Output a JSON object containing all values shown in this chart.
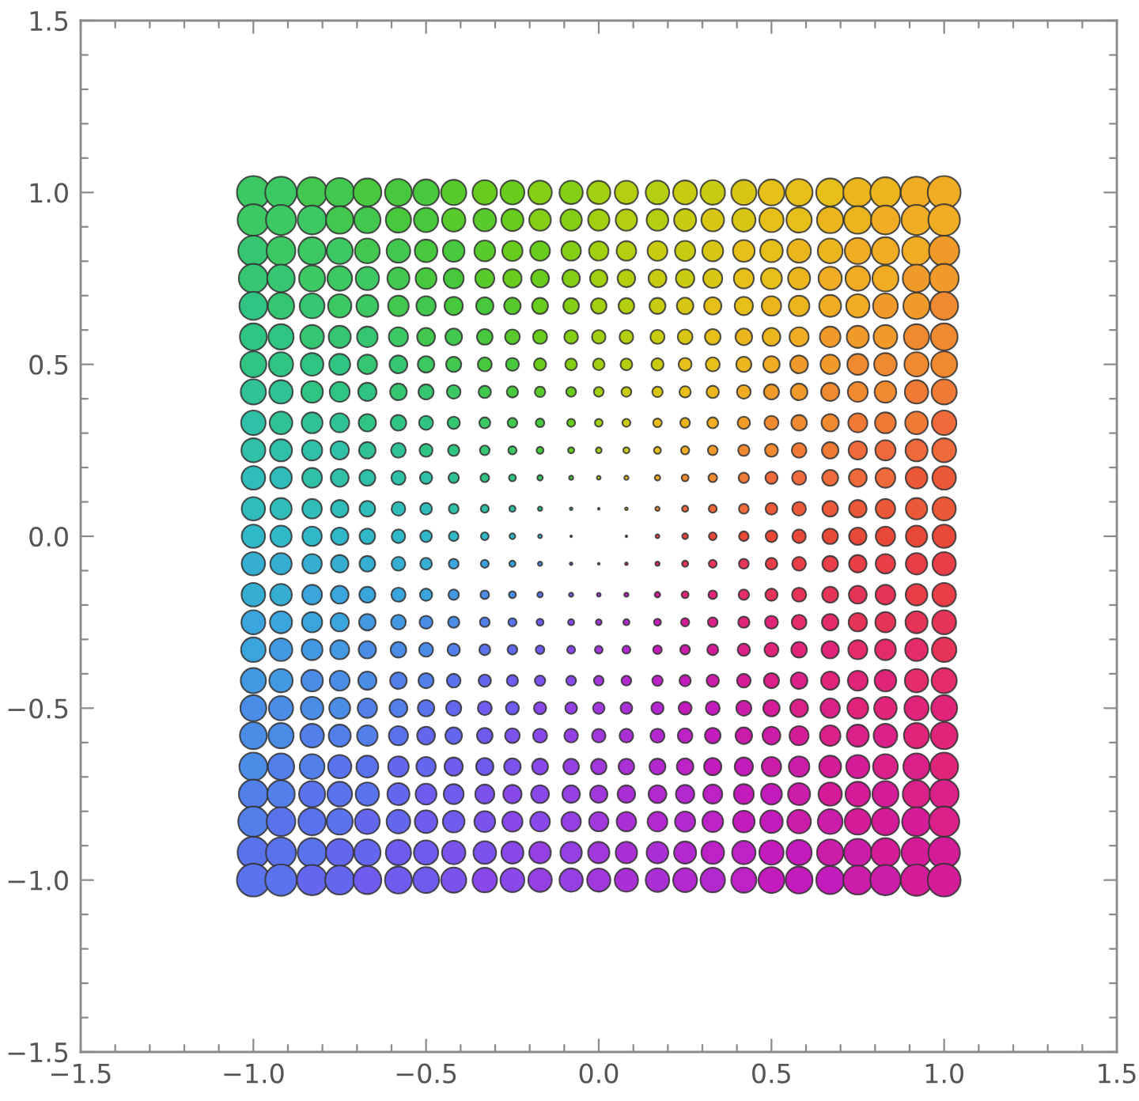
{
  "chart_data": {
    "type": "bubble",
    "marker": "circle",
    "xlim": [
      -1.5,
      1.5
    ],
    "ylim": [
      -1.5,
      1.5
    ],
    "xticks": [
      {
        "value": -1.5,
        "label": "−1.5"
      },
      {
        "value": -1.0,
        "label": "−1.0"
      },
      {
        "value": -0.5,
        "label": "−0.5"
      },
      {
        "value": 0.0,
        "label": "0.0"
      },
      {
        "value": 0.5,
        "label": "0.5"
      },
      {
        "value": 1.0,
        "label": "1.0"
      },
      {
        "value": 1.5,
        "label": "1.5"
      }
    ],
    "yticks": [
      {
        "value": -1.5,
        "label": "−1.5"
      },
      {
        "value": -1.0,
        "label": "−1.0"
      },
      {
        "value": -0.5,
        "label": "−0.5"
      },
      {
        "value": 0.0,
        "label": "0.0"
      },
      {
        "value": 0.5,
        "label": "0.5"
      },
      {
        "value": 1.0,
        "label": "1.0"
      },
      {
        "value": 1.5,
        "label": "1.5"
      }
    ],
    "x": [
      -1,
      -0.92,
      -0.83,
      -0.75,
      -0.67,
      -0.58,
      -0.5,
      -0.42,
      -0.33,
      -0.25,
      -0.17,
      -0.08,
      0,
      0.08,
      0.17,
      0.25,
      0.33,
      0.42,
      0.5,
      0.58,
      0.67,
      0.75,
      0.83,
      0.92,
      1
    ],
    "series": [
      {
        "values": [
          1,
          1,
          1,
          1,
          1,
          1,
          1,
          1,
          1,
          1,
          1,
          1,
          1,
          1,
          1,
          1,
          1,
          1,
          1,
          1,
          1,
          1,
          1,
          1,
          1
        ],
        "sizes": [
          1,
          0.92,
          0.847,
          0.781,
          0.722,
          0.67,
          0.625,
          0.587,
          0.556,
          0.531,
          0.514,
          0.503,
          0.5,
          0.503,
          0.514,
          0.531,
          0.556,
          0.587,
          0.625,
          0.67,
          0.722,
          0.781,
          0.847,
          0.92,
          1
        ],
        "colors": [
          "#3cc862",
          "#3cc862",
          "#42c84f",
          "#42c84f",
          "#48c83c",
          "#48c83c",
          "#48c83c",
          "#58ca2c",
          "#68cc1c",
          "#68cc1c",
          "#84ce16",
          "#84ce16",
          "#a0d010",
          "#b4ce10",
          "#b4ce10",
          "#c8cc10",
          "#c8cc10",
          "#d7c614",
          "#e6c018",
          "#e6c018",
          "#e6c018",
          "#ebb61d",
          "#ebb61d",
          "#f0ac22",
          "#f0ac22"
        ]
      },
      {
        "values": [
          0.92,
          0.92,
          0.92,
          0.92,
          0.92,
          0.92,
          0.92,
          0.92,
          0.92,
          0.92,
          0.92,
          0.92,
          0.92,
          0.92,
          0.92,
          0.92,
          0.92,
          0.92,
          0.92,
          0.92,
          0.92,
          0.92,
          0.92,
          0.92,
          0.92
        ],
        "sizes": [
          0.92,
          0.84,
          0.767,
          0.701,
          0.642,
          0.59,
          0.545,
          0.507,
          0.476,
          0.451,
          0.434,
          0.424,
          0.42,
          0.424,
          0.434,
          0.451,
          0.476,
          0.507,
          0.545,
          0.59,
          0.642,
          0.701,
          0.767,
          0.84,
          0.92
        ],
        "colors": [
          "#3cc862",
          "#3cc862",
          "#3cc862",
          "#42c84f",
          "#42c84f",
          "#48c83c",
          "#48c83c",
          "#58ca2c",
          "#58ca2c",
          "#68cc1c",
          "#84ce16",
          "#84ce16",
          "#a0d010",
          "#b4ce10",
          "#b4ce10",
          "#c8cc10",
          "#d7c614",
          "#d7c614",
          "#e6c018",
          "#e6c018",
          "#ebb61d",
          "#ebb61d",
          "#f0ac22",
          "#f0ac22",
          "#f0ac22"
        ]
      },
      {
        "values": [
          0.83,
          0.83,
          0.83,
          0.83,
          0.83,
          0.83,
          0.83,
          0.83,
          0.83,
          0.83,
          0.83,
          0.83,
          0.83,
          0.83,
          0.83,
          0.83,
          0.83,
          0.83,
          0.83,
          0.83,
          0.83,
          0.83,
          0.83,
          0.83,
          0.83
        ],
        "sizes": [
          0.847,
          0.767,
          0.694,
          0.628,
          0.569,
          0.517,
          0.472,
          0.434,
          0.403,
          0.378,
          0.361,
          0.351,
          0.347,
          0.351,
          0.361,
          0.378,
          0.403,
          0.434,
          0.472,
          0.517,
          0.569,
          0.628,
          0.694,
          0.767,
          0.847
        ],
        "colors": [
          "#36c672",
          "#3cc862",
          "#3cc862",
          "#3cc862",
          "#42c84f",
          "#42c84f",
          "#48c83c",
          "#48c83c",
          "#58ca2c",
          "#68cc1c",
          "#68cc1c",
          "#84ce16",
          "#a0d010",
          "#b4ce10",
          "#c8cc10",
          "#c8cc10",
          "#d7c614",
          "#e6c018",
          "#e6c018",
          "#ebb61d",
          "#ebb61d",
          "#f0ac22",
          "#f0ac22",
          "#f0ac22",
          "#f09b29"
        ]
      },
      {
        "values": [
          0.75,
          0.75,
          0.75,
          0.75,
          0.75,
          0.75,
          0.75,
          0.75,
          0.75,
          0.75,
          0.75,
          0.75,
          0.75,
          0.75,
          0.75,
          0.75,
          0.75,
          0.75,
          0.75,
          0.75,
          0.75,
          0.75,
          0.75,
          0.75,
          0.75
        ],
        "sizes": [
          0.781,
          0.701,
          0.628,
          0.563,
          0.503,
          0.451,
          0.406,
          0.368,
          0.337,
          0.313,
          0.295,
          0.285,
          0.281,
          0.285,
          0.295,
          0.313,
          0.337,
          0.368,
          0.406,
          0.451,
          0.503,
          0.563,
          0.628,
          0.701,
          0.781
        ],
        "colors": [
          "#36c672",
          "#36c672",
          "#3cc862",
          "#3cc862",
          "#3cc862",
          "#42c84f",
          "#48c83c",
          "#48c83c",
          "#58ca2c",
          "#68cc1c",
          "#68cc1c",
          "#84ce16",
          "#a0d010",
          "#b4ce10",
          "#c8cc10",
          "#c8cc10",
          "#d7c614",
          "#e6c018",
          "#e6c018",
          "#ebb61d",
          "#f0ac22",
          "#f0ac22",
          "#f0ac22",
          "#f09b29",
          "#f09b29"
        ]
      },
      {
        "values": [
          0.67,
          0.67,
          0.67,
          0.67,
          0.67,
          0.67,
          0.67,
          0.67,
          0.67,
          0.67,
          0.67,
          0.67,
          0.67,
          0.67,
          0.67,
          0.67,
          0.67,
          0.67,
          0.67,
          0.67,
          0.67,
          0.67,
          0.67,
          0.67,
          0.67
        ],
        "sizes": [
          0.722,
          0.642,
          0.569,
          0.503,
          0.444,
          0.392,
          0.347,
          0.309,
          0.278,
          0.253,
          0.236,
          0.226,
          0.222,
          0.226,
          0.236,
          0.253,
          0.278,
          0.309,
          0.347,
          0.392,
          0.444,
          0.503,
          0.569,
          0.642,
          0.722
        ],
        "colors": [
          "#30c482",
          "#36c672",
          "#36c672",
          "#3cc862",
          "#3cc862",
          "#42c84f",
          "#42c84f",
          "#48c83c",
          "#48c83c",
          "#58ca2c",
          "#68cc1c",
          "#84ce16",
          "#a0d010",
          "#b4ce10",
          "#c8cc10",
          "#d7c614",
          "#e6c018",
          "#e6c018",
          "#ebb61d",
          "#ebb61d",
          "#f0ac22",
          "#f0ac22",
          "#f09b29",
          "#f09b29",
          "#f08a30"
        ]
      },
      {
        "values": [
          0.58,
          0.58,
          0.58,
          0.58,
          0.58,
          0.58,
          0.58,
          0.58,
          0.58,
          0.58,
          0.58,
          0.58,
          0.58,
          0.58,
          0.58,
          0.58,
          0.58,
          0.58,
          0.58,
          0.58,
          0.58,
          0.58,
          0.58,
          0.58,
          0.58
        ],
        "sizes": [
          0.67,
          0.59,
          0.517,
          0.451,
          0.392,
          0.34,
          0.295,
          0.257,
          0.226,
          0.201,
          0.184,
          0.174,
          0.17,
          0.174,
          0.184,
          0.201,
          0.226,
          0.257,
          0.295,
          0.34,
          0.392,
          0.451,
          0.517,
          0.59,
          0.67
        ],
        "colors": [
          "#30c482",
          "#30c482",
          "#36c672",
          "#36c672",
          "#36c672",
          "#3cc862",
          "#42c84f",
          "#42c84f",
          "#48c83c",
          "#58ca2c",
          "#68cc1c",
          "#84ce16",
          "#a0d010",
          "#b4ce10",
          "#c8cc10",
          "#d7c614",
          "#e6c018",
          "#ebb61d",
          "#ebb61d",
          "#f0ac22",
          "#f09b29",
          "#f09b29",
          "#f09b29",
          "#f08a30",
          "#f08a30"
        ]
      },
      {
        "values": [
          0.5,
          0.5,
          0.5,
          0.5,
          0.5,
          0.5,
          0.5,
          0.5,
          0.5,
          0.5,
          0.5,
          0.5,
          0.5,
          0.5,
          0.5,
          0.5,
          0.5,
          0.5,
          0.5,
          0.5,
          0.5,
          0.5,
          0.5,
          0.5,
          0.5
        ],
        "sizes": [
          0.625,
          0.545,
          0.472,
          0.406,
          0.347,
          0.295,
          0.25,
          0.212,
          0.181,
          0.156,
          0.139,
          0.128,
          0.125,
          0.128,
          0.139,
          0.156,
          0.181,
          0.212,
          0.25,
          0.295,
          0.347,
          0.406,
          0.472,
          0.545,
          0.625
        ],
        "colors": [
          "#30c482",
          "#30c482",
          "#30c482",
          "#30c482",
          "#36c672",
          "#36c672",
          "#3cc862",
          "#42c84f",
          "#48c83c",
          "#48c83c",
          "#68cc1c",
          "#84ce16",
          "#a0d010",
          "#b4ce10",
          "#c8cc10",
          "#e6c018",
          "#e6c018",
          "#ebb61d",
          "#f0ac22",
          "#f09b29",
          "#f09b29",
          "#f08a30",
          "#f08a30",
          "#f08a30",
          "#f08a30"
        ]
      },
      {
        "values": [
          0.42,
          0.42,
          0.42,
          0.42,
          0.42,
          0.42,
          0.42,
          0.42,
          0.42,
          0.42,
          0.42,
          0.42,
          0.42,
          0.42,
          0.42,
          0.42,
          0.42,
          0.42,
          0.42,
          0.42,
          0.42,
          0.42,
          0.42,
          0.42,
          0.42
        ],
        "sizes": [
          0.587,
          0.507,
          0.434,
          0.368,
          0.309,
          0.257,
          0.212,
          0.174,
          0.142,
          0.118,
          0.101,
          0.09,
          0.087,
          0.09,
          0.101,
          0.118,
          0.142,
          0.174,
          0.212,
          0.257,
          0.309,
          0.368,
          0.434,
          0.507,
          0.587
        ],
        "colors": [
          "#30c295",
          "#30c295",
          "#30c482",
          "#30c482",
          "#30c482",
          "#36c672",
          "#36c672",
          "#3cc862",
          "#42c84f",
          "#48c83c",
          "#58ca2c",
          "#68cc1c",
          "#a0d010",
          "#c8cc10",
          "#d7c614",
          "#e6c018",
          "#ebb61d",
          "#f0ac22",
          "#f09b29",
          "#f09b29",
          "#f08a30",
          "#f08a30",
          "#f08a30",
          "#ef7a35",
          "#ef7a35"
        ]
      },
      {
        "values": [
          0.33,
          0.33,
          0.33,
          0.33,
          0.33,
          0.33,
          0.33,
          0.33,
          0.33,
          0.33,
          0.33,
          0.33,
          0.33,
          0.33,
          0.33,
          0.33,
          0.33,
          0.33,
          0.33,
          0.33,
          0.33,
          0.33,
          0.33,
          0.33,
          0.33
        ],
        "sizes": [
          0.556,
          0.476,
          0.403,
          0.337,
          0.278,
          0.226,
          0.181,
          0.142,
          0.111,
          0.087,
          0.069,
          0.059,
          0.056,
          0.059,
          0.069,
          0.087,
          0.111,
          0.142,
          0.181,
          0.226,
          0.278,
          0.337,
          0.403,
          0.476,
          0.556
        ],
        "colors": [
          "#30c0a8",
          "#30c295",
          "#30c295",
          "#30c295",
          "#30c482",
          "#30c482",
          "#30c482",
          "#36c672",
          "#3cc862",
          "#42c84f",
          "#48c83c",
          "#68cc1c",
          "#a0d010",
          "#c8cc10",
          "#e6c018",
          "#ebb61d",
          "#f0ac22",
          "#f09b29",
          "#f08a30",
          "#f08a30",
          "#f08a30",
          "#ef7a35",
          "#ef7a35",
          "#ef7a35",
          "#ee6a3a"
        ]
      },
      {
        "values": [
          0.25,
          0.25,
          0.25,
          0.25,
          0.25,
          0.25,
          0.25,
          0.25,
          0.25,
          0.25,
          0.25,
          0.25,
          0.25,
          0.25,
          0.25,
          0.25,
          0.25,
          0.25,
          0.25,
          0.25,
          0.25,
          0.25,
          0.25,
          0.25,
          0.25
        ],
        "sizes": [
          0.531,
          0.451,
          0.378,
          0.313,
          0.253,
          0.201,
          0.156,
          0.118,
          0.087,
          0.063,
          0.045,
          0.035,
          0.031,
          0.035,
          0.045,
          0.063,
          0.087,
          0.118,
          0.156,
          0.201,
          0.253,
          0.313,
          0.378,
          0.451,
          0.531
        ],
        "colors": [
          "#30c0a8",
          "#30c0a8",
          "#30c0a8",
          "#30c0a8",
          "#30c295",
          "#30c295",
          "#30c482",
          "#30c482",
          "#36c672",
          "#3cc862",
          "#48c83c",
          "#68cc1c",
          "#a0d010",
          "#c8cc10",
          "#e6c018",
          "#f0ac22",
          "#f09b29",
          "#f08a30",
          "#f08a30",
          "#ef7a35",
          "#ef7a35",
          "#ee6a3a",
          "#ee6a3a",
          "#ee6a3a",
          "#ee6a3a"
        ]
      },
      {
        "values": [
          0.17,
          0.17,
          0.17,
          0.17,
          0.17,
          0.17,
          0.17,
          0.17,
          0.17,
          0.17,
          0.17,
          0.17,
          0.17,
          0.17,
          0.17,
          0.17,
          0.17,
          0.17,
          0.17,
          0.17,
          0.17,
          0.17,
          0.17,
          0.17,
          0.17
        ],
        "sizes": [
          0.514,
          0.434,
          0.361,
          0.295,
          0.236,
          0.184,
          0.139,
          0.101,
          0.069,
          0.045,
          0.028,
          0.017,
          0.014,
          0.017,
          0.028,
          0.045,
          0.069,
          0.101,
          0.139,
          0.184,
          0.236,
          0.295,
          0.361,
          0.434,
          0.514
        ],
        "colors": [
          "#30bcb8",
          "#30bcb8",
          "#30c0a8",
          "#30c0a8",
          "#30c0a8",
          "#30c0a8",
          "#30c0a8",
          "#30c295",
          "#30c482",
          "#30c482",
          "#3cc862",
          "#48c83c",
          "#a0d010",
          "#e6c018",
          "#f0ac22",
          "#f08a30",
          "#f08a30",
          "#ef7a35",
          "#ee6a3a",
          "#ee6a3a",
          "#ee6a3a",
          "#ee6a3a",
          "#ee6a3a",
          "#eb5939",
          "#eb5939"
        ]
      },
      {
        "values": [
          0.08,
          0.08,
          0.08,
          0.08,
          0.08,
          0.08,
          0.08,
          0.08,
          0.08,
          0.08,
          0.08,
          0.08,
          0.08,
          0.08,
          0.08,
          0.08,
          0.08,
          0.08,
          0.08,
          0.08,
          0.08,
          0.08,
          0.08,
          0.08,
          0.08
        ],
        "sizes": [
          0.503,
          0.424,
          0.351,
          0.285,
          0.226,
          0.174,
          0.128,
          0.09,
          0.059,
          0.035,
          0.017,
          0.007,
          0.003,
          0.007,
          0.017,
          0.035,
          0.059,
          0.09,
          0.128,
          0.174,
          0.226,
          0.285,
          0.351,
          0.424,
          0.503
        ],
        "colors": [
          "#30bcb8",
          "#30bcb8",
          "#30bcb8",
          "#30bcb8",
          "#30bcb8",
          "#30bcb8",
          "#30bcb8",
          "#30c0a8",
          "#30c0a8",
          "#30c0a8",
          "#30c482",
          "#3cc862",
          "#a0d010",
          "#f0ac22",
          "#f08a30",
          "#ee6a3a",
          "#ee6a3a",
          "#ee6a3a",
          "#eb5939",
          "#eb5939",
          "#eb5939",
          "#eb5939",
          "#eb5939",
          "#eb5939",
          "#eb5939"
        ]
      },
      {
        "values": [
          0,
          0,
          0,
          0,
          0,
          0,
          0,
          0,
          0,
          0,
          0,
          0,
          null,
          0,
          0,
          0,
          0,
          0,
          0,
          0,
          0,
          0,
          0,
          0,
          0
        ],
        "sizes": [
          0.5,
          0.42,
          0.347,
          0.281,
          0.222,
          0.17,
          0.125,
          0.087,
          0.056,
          0.031,
          0.014,
          0.003,
          null,
          0.003,
          0.014,
          0.031,
          0.056,
          0.087,
          0.125,
          0.17,
          0.222,
          0.281,
          0.347,
          0.42,
          0.5
        ],
        "colors": [
          "#30b8c8",
          "#30b8c8",
          "#30b8c8",
          "#30b8c8",
          "#30b8c8",
          "#30b8c8",
          "#30b8c8",
          "#30b8c8",
          "#30b8c8",
          "#30b8c8",
          "#30b8c8",
          "#30b8c8",
          null,
          "#e84838",
          "#e84838",
          "#e84838",
          "#e84838",
          "#e84838",
          "#e84838",
          "#e84838",
          "#e84838",
          "#e84838",
          "#e84838",
          "#e84838",
          "#e84838"
        ]
      },
      {
        "values": [
          -0.08,
          -0.08,
          -0.08,
          -0.08,
          -0.08,
          -0.08,
          -0.08,
          -0.08,
          -0.08,
          -0.08,
          -0.08,
          -0.08,
          -0.08,
          -0.08,
          -0.08,
          -0.08,
          -0.08,
          -0.08,
          -0.08,
          -0.08,
          -0.08,
          -0.08,
          -0.08,
          -0.08,
          -0.08
        ],
        "sizes": [
          0.503,
          0.424,
          0.351,
          0.285,
          0.226,
          0.174,
          0.128,
          0.09,
          0.059,
          0.035,
          0.017,
          0.007,
          0.003,
          0.007,
          0.017,
          0.035,
          0.059,
          0.09,
          0.128,
          0.174,
          0.226,
          0.285,
          0.351,
          0.424,
          0.503
        ],
        "colors": [
          "#35aed2",
          "#35aed2",
          "#35aed2",
          "#35aed2",
          "#35aed2",
          "#35aed2",
          "#35aed2",
          "#3aa4dc",
          "#3aa4dc",
          "#3aa4dc",
          "#4a8ce6",
          "#5a72ec",
          "#a038dc",
          "#d41c98",
          "#e0247a",
          "#e63458",
          "#e63458",
          "#e63458",
          "#e73e48",
          "#e73e48",
          "#e73e48",
          "#e73e48",
          "#e73e48",
          "#e73e48",
          "#e73e48"
        ]
      },
      {
        "values": [
          -0.17,
          -0.17,
          -0.17,
          -0.17,
          -0.17,
          -0.17,
          -0.17,
          -0.17,
          -0.17,
          -0.17,
          -0.17,
          -0.17,
          -0.17,
          -0.17,
          -0.17,
          -0.17,
          -0.17,
          -0.17,
          -0.17,
          -0.17,
          -0.17,
          -0.17,
          -0.17,
          -0.17,
          -0.17
        ],
        "sizes": [
          0.514,
          0.434,
          0.361,
          0.295,
          0.236,
          0.184,
          0.139,
          0.101,
          0.069,
          0.045,
          0.028,
          0.017,
          0.014,
          0.017,
          0.028,
          0.045,
          0.069,
          0.101,
          0.139,
          0.184,
          0.236,
          0.295,
          0.361,
          0.434,
          0.514
        ],
        "colors": [
          "#35aed2",
          "#35aed2",
          "#3aa4dc",
          "#3aa4dc",
          "#3aa4dc",
          "#3aa4dc",
          "#3aa4dc",
          "#4298e1",
          "#4a8ce6",
          "#4a8ce6",
          "#5a72ec",
          "#6e5cee",
          "#a038dc",
          "#c41cbc",
          "#d41c98",
          "#e0247a",
          "#e0247a",
          "#e32c69",
          "#e63458",
          "#e63458",
          "#e63458",
          "#e63458",
          "#e63458",
          "#e73e48",
          "#e73e48"
        ]
      },
      {
        "values": [
          -0.25,
          -0.25,
          -0.25,
          -0.25,
          -0.25,
          -0.25,
          -0.25,
          -0.25,
          -0.25,
          -0.25,
          -0.25,
          -0.25,
          -0.25,
          -0.25,
          -0.25,
          -0.25,
          -0.25,
          -0.25,
          -0.25,
          -0.25,
          -0.25,
          -0.25,
          -0.25,
          -0.25,
          -0.25
        ],
        "sizes": [
          0.531,
          0.451,
          0.378,
          0.313,
          0.253,
          0.201,
          0.156,
          0.118,
          0.087,
          0.063,
          0.045,
          0.035,
          0.031,
          0.035,
          0.045,
          0.063,
          0.087,
          0.118,
          0.156,
          0.201,
          0.253,
          0.313,
          0.378,
          0.451,
          0.531
        ],
        "colors": [
          "#3aa4dc",
          "#3aa4dc",
          "#3aa4dc",
          "#3aa4dc",
          "#4298e1",
          "#4298e1",
          "#4a8ce6",
          "#4a8ce6",
          "#527fe9",
          "#5a72ec",
          "#6e5cee",
          "#8848ea",
          "#a038dc",
          "#b428d0",
          "#c41cbc",
          "#d41c98",
          "#da2089",
          "#e0247a",
          "#e0247a",
          "#e32c69",
          "#e32c69",
          "#e63458",
          "#e63458",
          "#e63458",
          "#e63458"
        ]
      },
      {
        "values": [
          -0.33,
          -0.33,
          -0.33,
          -0.33,
          -0.33,
          -0.33,
          -0.33,
          -0.33,
          -0.33,
          -0.33,
          -0.33,
          -0.33,
          -0.33,
          -0.33,
          -0.33,
          -0.33,
          -0.33,
          -0.33,
          -0.33,
          -0.33,
          -0.33,
          -0.33,
          -0.33,
          -0.33,
          -0.33
        ],
        "sizes": [
          0.556,
          0.476,
          0.403,
          0.337,
          0.278,
          0.226,
          0.181,
          0.142,
          0.111,
          0.087,
          0.069,
          0.059,
          0.056,
          0.059,
          0.069,
          0.087,
          0.111,
          0.142,
          0.181,
          0.226,
          0.278,
          0.337,
          0.403,
          0.476,
          0.556
        ],
        "colors": [
          "#3aa4dc",
          "#4298e1",
          "#4298e1",
          "#4298e1",
          "#4a8ce6",
          "#4a8ce6",
          "#4a8ce6",
          "#527fe9",
          "#5a72ec",
          "#6467ed",
          "#6e5cee",
          "#8848ea",
          "#a038dc",
          "#b428d0",
          "#c41cbc",
          "#cc1caa",
          "#d41c98",
          "#da2089",
          "#e0247a",
          "#e0247a",
          "#e0247a",
          "#e32c69",
          "#e32c69",
          "#e32c69",
          "#e63458"
        ]
      },
      {
        "values": [
          -0.42,
          -0.42,
          -0.42,
          -0.42,
          -0.42,
          -0.42,
          -0.42,
          -0.42,
          -0.42,
          -0.42,
          -0.42,
          -0.42,
          -0.42,
          -0.42,
          -0.42,
          -0.42,
          -0.42,
          -0.42,
          -0.42,
          -0.42,
          -0.42,
          -0.42,
          -0.42,
          -0.42,
          -0.42
        ],
        "sizes": [
          0.587,
          0.507,
          0.434,
          0.368,
          0.309,
          0.257,
          0.212,
          0.174,
          0.142,
          0.118,
          0.101,
          0.09,
          0.087,
          0.09,
          0.101,
          0.118,
          0.142,
          0.174,
          0.212,
          0.257,
          0.309,
          0.368,
          0.434,
          0.507,
          0.587
        ],
        "colors": [
          "#4298e1",
          "#4298e1",
          "#4a8ce6",
          "#4a8ce6",
          "#4a8ce6",
          "#527fe9",
          "#527fe9",
          "#5a72ec",
          "#6467ed",
          "#6e5cee",
          "#7b52ec",
          "#8848ea",
          "#a038dc",
          "#b428d0",
          "#bc22c6",
          "#c41cbc",
          "#cc1caa",
          "#d41c98",
          "#da2089",
          "#da2089",
          "#e0247a",
          "#e0247a",
          "#e0247a",
          "#e32c69",
          "#e32c69"
        ]
      },
      {
        "values": [
          -0.5,
          -0.5,
          -0.5,
          -0.5,
          -0.5,
          -0.5,
          -0.5,
          -0.5,
          -0.5,
          -0.5,
          -0.5,
          -0.5,
          -0.5,
          -0.5,
          -0.5,
          -0.5,
          -0.5,
          -0.5,
          -0.5,
          -0.5,
          -0.5,
          -0.5,
          -0.5,
          -0.5,
          -0.5
        ],
        "sizes": [
          0.625,
          0.545,
          0.472,
          0.406,
          0.347,
          0.295,
          0.25,
          0.212,
          0.181,
          0.156,
          0.139,
          0.128,
          0.125,
          0.128,
          0.139,
          0.156,
          0.181,
          0.212,
          0.25,
          0.295,
          0.347,
          0.406,
          0.472,
          0.545,
          0.625
        ],
        "colors": [
          "#4a8ce6",
          "#4a8ce6",
          "#4a8ce6",
          "#4a8ce6",
          "#527fe9",
          "#527fe9",
          "#5a72ec",
          "#6467ed",
          "#6e5cee",
          "#6e5cee",
          "#8848ea",
          "#9440e3",
          "#a038dc",
          "#aa30d6",
          "#b428d0",
          "#c41cbc",
          "#c41cbc",
          "#cc1caa",
          "#d41c98",
          "#da2089",
          "#da2089",
          "#e0247a",
          "#e0247a",
          "#e0247a",
          "#e0247a"
        ]
      },
      {
        "values": [
          -0.58,
          -0.58,
          -0.58,
          -0.58,
          -0.58,
          -0.58,
          -0.58,
          -0.58,
          -0.58,
          -0.58,
          -0.58,
          -0.58,
          -0.58,
          -0.58,
          -0.58,
          -0.58,
          -0.58,
          -0.58,
          -0.58,
          -0.58,
          -0.58,
          -0.58,
          -0.58,
          -0.58,
          -0.58
        ],
        "sizes": [
          0.67,
          0.59,
          0.517,
          0.451,
          0.392,
          0.34,
          0.295,
          0.257,
          0.226,
          0.201,
          0.184,
          0.174,
          0.17,
          0.174,
          0.184,
          0.201,
          0.226,
          0.257,
          0.295,
          0.34,
          0.392,
          0.451,
          0.517,
          0.59,
          0.67
        ],
        "colors": [
          "#4a8ce6",
          "#4a8ce6",
          "#527fe9",
          "#527fe9",
          "#527fe9",
          "#5a72ec",
          "#6467ed",
          "#6467ed",
          "#6e5cee",
          "#7b52ec",
          "#8848ea",
          "#9440e3",
          "#a038dc",
          "#aa30d6",
          "#b428d0",
          "#bc22c6",
          "#c41cbc",
          "#cc1caa",
          "#cc1caa",
          "#d41c98",
          "#da2089",
          "#da2089",
          "#da2089",
          "#e0247a",
          "#e0247a"
        ]
      },
      {
        "values": [
          -0.67,
          -0.67,
          -0.67,
          -0.67,
          -0.67,
          -0.67,
          -0.67,
          -0.67,
          -0.67,
          -0.67,
          -0.67,
          -0.67,
          -0.67,
          -0.67,
          -0.67,
          -0.67,
          -0.67,
          -0.67,
          -0.67,
          -0.67,
          -0.67,
          -0.67,
          -0.67,
          -0.67,
          -0.67
        ],
        "sizes": [
          0.722,
          0.642,
          0.569,
          0.503,
          0.444,
          0.392,
          0.347,
          0.309,
          0.278,
          0.253,
          0.236,
          0.226,
          0.222,
          0.226,
          0.236,
          0.253,
          0.278,
          0.309,
          0.347,
          0.392,
          0.444,
          0.503,
          0.569,
          0.642,
          0.722
        ],
        "colors": [
          "#4a8ce6",
          "#527fe9",
          "#527fe9",
          "#5a72ec",
          "#5a72ec",
          "#6467ed",
          "#6467ed",
          "#6e5cee",
          "#6e5cee",
          "#7b52ec",
          "#8848ea",
          "#9440e3",
          "#a038dc",
          "#aa30d6",
          "#b428d0",
          "#bc22c6",
          "#c41cbc",
          "#c41cbc",
          "#cc1caa",
          "#cc1caa",
          "#d41c98",
          "#d41c98",
          "#da2089",
          "#da2089",
          "#e0247a"
        ]
      },
      {
        "values": [
          -0.75,
          -0.75,
          -0.75,
          -0.75,
          -0.75,
          -0.75,
          -0.75,
          -0.75,
          -0.75,
          -0.75,
          -0.75,
          -0.75,
          -0.75,
          -0.75,
          -0.75,
          -0.75,
          -0.75,
          -0.75,
          -0.75,
          -0.75,
          -0.75,
          -0.75,
          -0.75,
          -0.75,
          -0.75
        ],
        "sizes": [
          0.781,
          0.701,
          0.628,
          0.563,
          0.503,
          0.451,
          0.406,
          0.368,
          0.337,
          0.313,
          0.295,
          0.285,
          0.281,
          0.285,
          0.295,
          0.313,
          0.337,
          0.368,
          0.406,
          0.451,
          0.503,
          0.563,
          0.628,
          0.701,
          0.781
        ],
        "colors": [
          "#527fe9",
          "#527fe9",
          "#5a72ec",
          "#5a72ec",
          "#5a72ec",
          "#6467ed",
          "#6e5cee",
          "#6e5cee",
          "#7b52ec",
          "#8848ea",
          "#8848ea",
          "#9440e3",
          "#a038dc",
          "#aa30d6",
          "#b428d0",
          "#b428d0",
          "#bc22c6",
          "#c41cbc",
          "#c41cbc",
          "#cc1caa",
          "#d41c98",
          "#d41c98",
          "#d41c98",
          "#da2089",
          "#da2089"
        ]
      },
      {
        "values": [
          -0.83,
          -0.83,
          -0.83,
          -0.83,
          -0.83,
          -0.83,
          -0.83,
          -0.83,
          -0.83,
          -0.83,
          -0.83,
          -0.83,
          -0.83,
          -0.83,
          -0.83,
          -0.83,
          -0.83,
          -0.83,
          -0.83,
          -0.83,
          -0.83,
          -0.83,
          -0.83,
          -0.83,
          -0.83
        ],
        "sizes": [
          0.847,
          0.767,
          0.694,
          0.628,
          0.569,
          0.517,
          0.472,
          0.434,
          0.403,
          0.378,
          0.361,
          0.351,
          0.347,
          0.351,
          0.361,
          0.378,
          0.403,
          0.434,
          0.472,
          0.517,
          0.569,
          0.628,
          0.694,
          0.767,
          0.847
        ],
        "colors": [
          "#527fe9",
          "#5a72ec",
          "#5a72ec",
          "#5a72ec",
          "#6467ed",
          "#6467ed",
          "#6e5cee",
          "#6e5cee",
          "#7b52ec",
          "#8848ea",
          "#8848ea",
          "#9440e3",
          "#a038dc",
          "#aa30d6",
          "#b428d0",
          "#b428d0",
          "#bc22c6",
          "#c41cbc",
          "#c41cbc",
          "#cc1caa",
          "#cc1caa",
          "#d41c98",
          "#d41c98",
          "#d41c98",
          "#da2089"
        ]
      },
      {
        "values": [
          -0.92,
          -0.92,
          -0.92,
          -0.92,
          -0.92,
          -0.92,
          -0.92,
          -0.92,
          -0.92,
          -0.92,
          -0.92,
          -0.92,
          -0.92,
          -0.92,
          -0.92,
          -0.92,
          -0.92,
          -0.92,
          -0.92,
          -0.92,
          -0.92,
          -0.92,
          -0.92,
          -0.92,
          -0.92
        ],
        "sizes": [
          0.92,
          0.84,
          0.767,
          0.701,
          0.642,
          0.59,
          0.545,
          0.507,
          0.476,
          0.451,
          0.434,
          0.424,
          0.42,
          0.424,
          0.434,
          0.451,
          0.476,
          0.507,
          0.545,
          0.59,
          0.642,
          0.701,
          0.767,
          0.84,
          0.92
        ],
        "colors": [
          "#5a72ec",
          "#5a72ec",
          "#5a72ec",
          "#6467ed",
          "#6467ed",
          "#6e5cee",
          "#6e5cee",
          "#7b52ec",
          "#7b52ec",
          "#8848ea",
          "#9440e3",
          "#9440e3",
          "#a038dc",
          "#aa30d6",
          "#aa30d6",
          "#b428d0",
          "#bc22c6",
          "#bc22c6",
          "#c41cbc",
          "#c41cbc",
          "#cc1caa",
          "#cc1caa",
          "#d41c98",
          "#d41c98",
          "#d41c98"
        ]
      },
      {
        "values": [
          -1,
          -1,
          -1,
          -1,
          -1,
          -1,
          -1,
          -1,
          -1,
          -1,
          -1,
          -1,
          -1,
          -1,
          -1,
          -1,
          -1,
          -1,
          -1,
          -1,
          -1,
          -1,
          -1,
          -1,
          -1
        ],
        "sizes": [
          1,
          0.92,
          0.847,
          0.781,
          0.722,
          0.67,
          0.625,
          0.587,
          0.556,
          0.531,
          0.514,
          0.503,
          0.5,
          0.503,
          0.514,
          0.531,
          0.556,
          0.587,
          0.625,
          0.67,
          0.722,
          0.781,
          0.847,
          0.92,
          1
        ],
        "colors": [
          "#5a72ec",
          "#5a72ec",
          "#6467ed",
          "#6467ed",
          "#6e5cee",
          "#6e5cee",
          "#6e5cee",
          "#7b52ec",
          "#8848ea",
          "#8848ea",
          "#9440e3",
          "#9440e3",
          "#a038dc",
          "#aa30d6",
          "#aa30d6",
          "#b428d0",
          "#b428d0",
          "#bc22c6",
          "#c41cbc",
          "#c41cbc",
          "#c41cbc",
          "#cc1caa",
          "#cc1caa",
          "#d41c98",
          "#d41c98"
        ]
      }
    ]
  }
}
